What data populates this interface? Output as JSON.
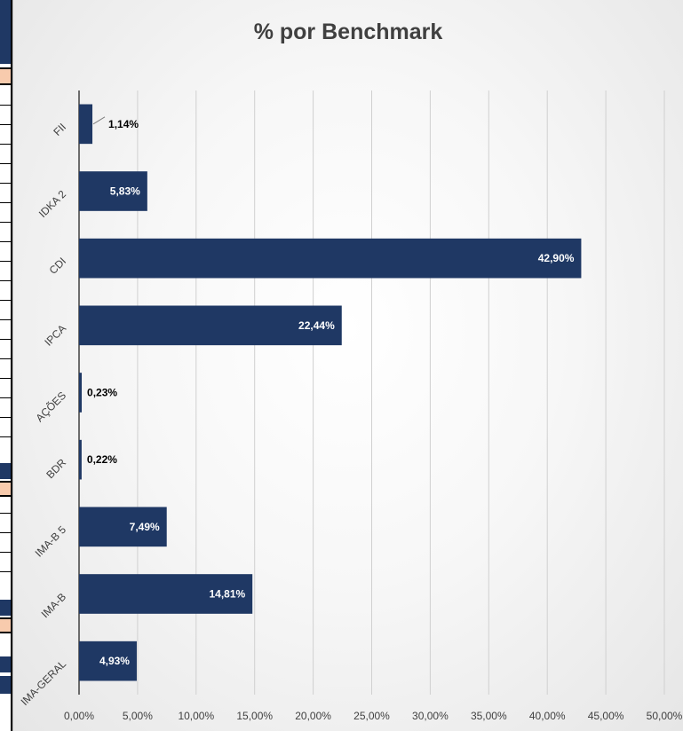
{
  "chart_data": {
    "type": "bar",
    "orientation": "horizontal",
    "title": "% por Benchmark",
    "xlabel": "",
    "ylabel": "",
    "categories": [
      "FII",
      "IDKA 2",
      "CDI",
      "IPCA",
      "AÇÕES",
      "BDR",
      "IMA-B 5",
      "IMA-B",
      "IMA-GERAL"
    ],
    "values": [
      1.14,
      5.83,
      42.9,
      22.44,
      0.23,
      0.22,
      7.49,
      14.81,
      4.93
    ],
    "data_labels": [
      "1,14%",
      "5,83%",
      "42,90%",
      "22,44%",
      "0,23%",
      "0,22%",
      "7,49%",
      "14,81%",
      "4,93%"
    ],
    "x_ticks": [
      "0,00%",
      "5,00%",
      "10,00%",
      "15,00%",
      "20,00%",
      "25,00%",
      "30,00%",
      "35,00%",
      "40,00%",
      "45,00%",
      "50,00%"
    ],
    "xlim": [
      0,
      50
    ],
    "grid": "vertical",
    "legend": "none",
    "bar_color": "#1f3864"
  }
}
